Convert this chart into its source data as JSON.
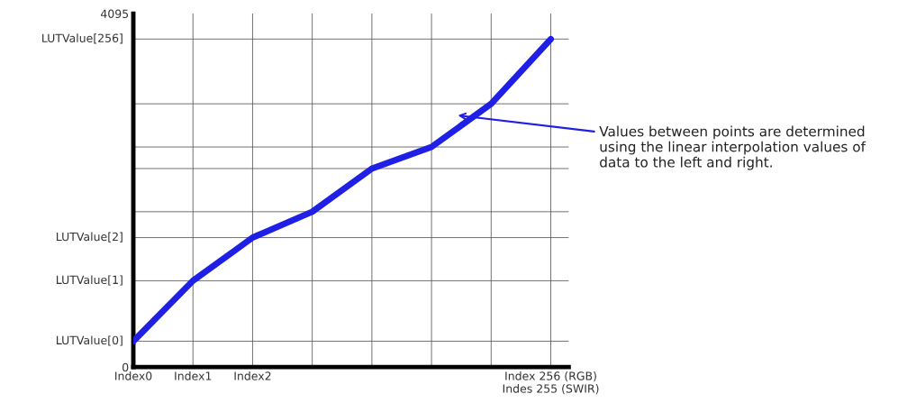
{
  "chart_data": {
    "type": "line",
    "categories": [
      "Index0",
      "Index1",
      "Index2",
      null,
      null,
      null,
      null,
      "Index 256 (RGB)\nIndes 255 (SWIR)"
    ],
    "series": [
      {
        "color": "#1f1fe6",
        "values": [
          300,
          1000,
          1500,
          1800,
          2300,
          2550,
          3050,
          3800
        ]
      }
    ],
    "ylim": [
      0,
      4095
    ],
    "yticks": [
      0,
      4095
    ],
    "grid": "x",
    "ref_lines": [
      {
        "axis": "y",
        "value": 300,
        "label": "LUTValue[0]"
      },
      {
        "axis": "y",
        "value": 1000,
        "label": "LUTValue[1]"
      },
      {
        "axis": "y",
        "value": 1500,
        "label": "LUTValue[2]"
      },
      {
        "axis": "y",
        "value": 1800
      },
      {
        "axis": "y",
        "value": 2300
      },
      {
        "axis": "y",
        "value": 2550
      },
      {
        "axis": "y",
        "value": 3050
      },
      {
        "axis": "y",
        "value": 3800,
        "label": "LUTValue[256]"
      }
    ],
    "marker": "none",
    "line_style": "solid",
    "annotations": [
      "Values between points are determined\nusing the linear interpolation values of\ndata to the left and right."
    ]
  }
}
